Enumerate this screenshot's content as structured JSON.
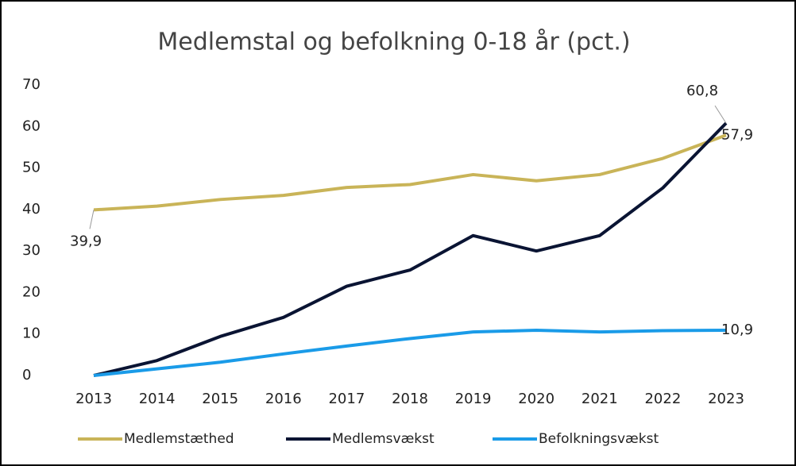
{
  "chart_data": {
    "type": "line",
    "title": "Medlemstal og befolkning 0-18 år (pct.)",
    "categories": [
      "2013",
      "2014",
      "2015",
      "2016",
      "2017",
      "2018",
      "2019",
      "2020",
      "2021",
      "2022",
      "2023"
    ],
    "series": [
      {
        "name": "Medlemstæthed",
        "color": "#c9b458",
        "values": [
          39.9,
          40.8,
          42.4,
          43.4,
          45.3,
          46,
          48.4,
          46.9,
          48.4,
          52.3,
          57.9
        ],
        "value_labels": [
          "39,9",
          null,
          null,
          null,
          null,
          null,
          null,
          null,
          null,
          null,
          "57,9"
        ]
      },
      {
        "name": "Medlemsvækst",
        "color": "#0a1433",
        "values": [
          0,
          3.6,
          9.4,
          14,
          21.5,
          25.4,
          33.7,
          30,
          33.7,
          45.2,
          60.8
        ],
        "value_labels": [
          null,
          null,
          null,
          null,
          null,
          null,
          null,
          null,
          null,
          null,
          "60,8"
        ]
      },
      {
        "name": "Befolkningsvækst",
        "color": "#1a9be8",
        "values": [
          0,
          1.6,
          3.2,
          5.2,
          7.1,
          8.9,
          10.5,
          10.9,
          10.5,
          10.8,
          10.9
        ],
        "value_labels": [
          null,
          null,
          null,
          null,
          null,
          null,
          null,
          null,
          null,
          null,
          "10,9"
        ]
      }
    ],
    "ylim": [
      0,
      70
    ],
    "yticks": [
      0,
      10,
      20,
      30,
      40,
      50,
      60,
      70
    ],
    "grid": false,
    "legend": "bottom"
  }
}
